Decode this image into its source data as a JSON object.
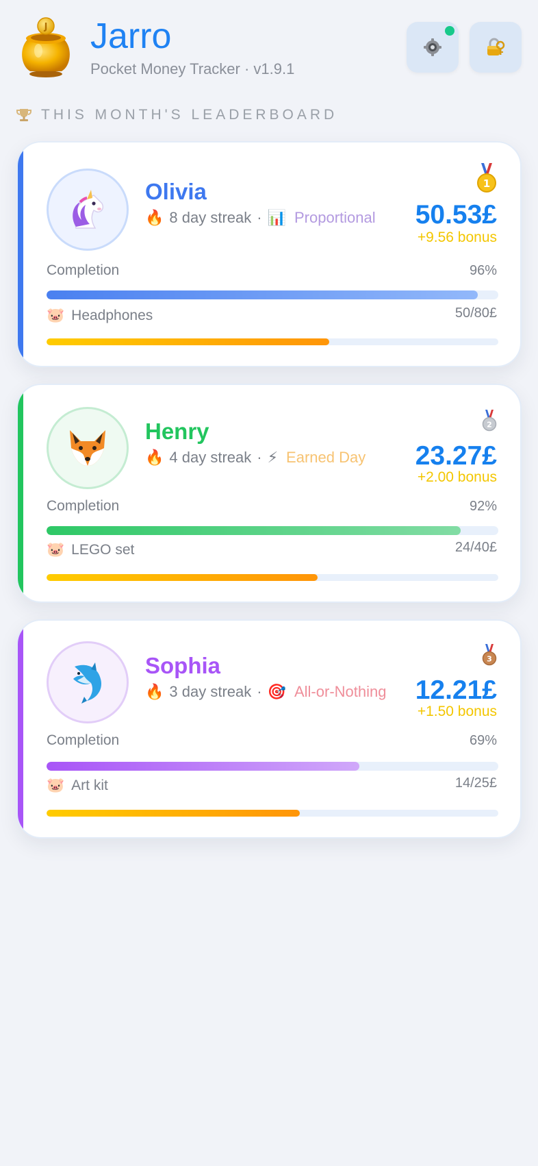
{
  "app": {
    "title": "Jarro",
    "subtitle": "Pocket Money Tracker · v1.9.1"
  },
  "header": {
    "settings_icon": "gear-icon",
    "lock_icon": "lock-icon",
    "notification": true
  },
  "leaderboard": {
    "label": "THIS MONTH'S LEADERBOARD",
    "icon": "trophy-icon"
  },
  "kids": [
    {
      "name": "Olivia",
      "avatar": "🦄",
      "name_color": "#3e78ef",
      "accent": "#3e78ef",
      "avatar_bg": "#eef3ff",
      "avatar_border": "#c9dbfb",
      "streak_icon": "🔥",
      "streak": "8 day streak",
      "separator": "·",
      "mode_icon": "📊",
      "mode": "Proportional",
      "mode_color": "#b39ae0",
      "medal": "🥇",
      "amount": "50.53£",
      "bonus": "+9.56 bonus",
      "completion_label": "Completion",
      "completion_value": "96%",
      "completion": 0.955,
      "bar_from": "#4a80f0",
      "bar_to": "#92b8fa",
      "goal_icon": "🐷",
      "goal_name": "Headphones",
      "goal_value": "50/80£",
      "goal_progress": 0.625
    },
    {
      "name": "Henry",
      "avatar": "🦊",
      "name_color": "#22c55e",
      "accent": "#22c55e",
      "avatar_bg": "#effaf2",
      "avatar_border": "#c4ecd2",
      "streak_icon": "🔥",
      "streak": "4 day streak",
      "separator": "·",
      "mode_icon": "⚡",
      "mode": "Earned Day",
      "mode_color": "#f7c372",
      "medal": "🥈",
      "amount": "23.27£",
      "bonus": "+2.00 bonus",
      "completion_label": "Completion",
      "completion_value": "92%",
      "completion": 0.916,
      "bar_from": "#2ec866",
      "bar_to": "#82dca4",
      "goal_icon": "🐷",
      "goal_name": "LEGO set",
      "goal_value": "24/40£",
      "goal_progress": 0.6
    },
    {
      "name": "Sophia",
      "avatar": "🐬",
      "name_color": "#a855f7",
      "accent": "#a855f7",
      "avatar_bg": "#f7f0fd",
      "avatar_border": "#e2cdf8",
      "streak_icon": "🔥",
      "streak": "3 day streak",
      "separator": "·",
      "mode_icon": "🎯",
      "mode": "All-or-Nothing",
      "mode_color": "#ef8e9a",
      "medal": "🥉",
      "amount": "12.21£",
      "bonus": "+1.50 bonus",
      "completion_label": "Completion",
      "completion_value": "69%",
      "completion": 0.693,
      "bar_from": "#a855f7",
      "bar_to": "#d0a8fa",
      "goal_icon": "🐷",
      "goal_name": "Art kit",
      "goal_value": "14/25£",
      "goal_progress": 0.56
    }
  ]
}
